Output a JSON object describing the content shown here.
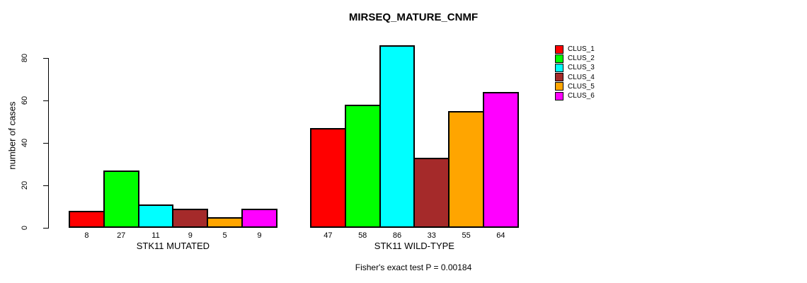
{
  "chart_data": {
    "type": "bar",
    "title": "MIRSEQ_MATURE_CNMF",
    "ylabel": "number of cases",
    "xlabel": "",
    "ylim": [
      0,
      86
    ],
    "yticks": [
      0,
      20,
      40,
      60,
      80
    ],
    "grid": false,
    "legend_position": "right",
    "categories": [
      "STK11 MUTATED",
      "STK11 WILD-TYPE"
    ],
    "series": [
      {
        "name": "CLUS_1",
        "color": "#ff0000",
        "values": [
          8,
          47
        ]
      },
      {
        "name": "CLUS_2",
        "color": "#00ff00",
        "values": [
          27,
          58
        ]
      },
      {
        "name": "CLUS_3",
        "color": "#00ffff",
        "values": [
          11,
          86
        ]
      },
      {
        "name": "CLUS_4",
        "color": "#a52a2a",
        "values": [
          9,
          33
        ]
      },
      {
        "name": "CLUS_5",
        "color": "#ffa500",
        "values": [
          5,
          55
        ]
      },
      {
        "name": "CLUS_6",
        "color": "#ff00ff",
        "values": [
          9,
          64
        ]
      }
    ],
    "annotation": "Fisher's exact test P = 0.00184",
    "axis_color": "#000000",
    "text_color": "#000000",
    "background": "#ffffff"
  }
}
